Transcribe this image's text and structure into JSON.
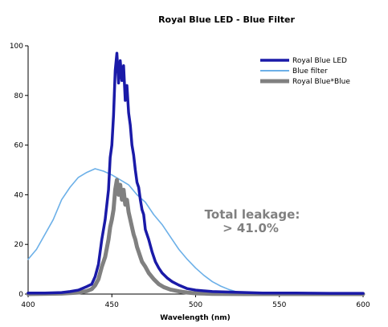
{
  "chart_data": {
    "type": "line",
    "title": "Royal Blue LED - Blue Filter",
    "xlabel": "Wavelength (nm)",
    "ylabel": "",
    "xlim": [
      400,
      600
    ],
    "ylim": [
      0,
      100
    ],
    "x_ticks": [
      "400",
      "450",
      "500",
      "550",
      "600"
    ],
    "y_ticks": [
      "0",
      "20",
      "40",
      "60",
      "80",
      "100"
    ],
    "grid": false,
    "legend_position": "top-right",
    "series": [
      {
        "name": "Royal Blue LED",
        "color": "#1a1aa8",
        "style": "thick",
        "points": [
          [
            400,
            0.4
          ],
          [
            410,
            0.4
          ],
          [
            420,
            0.6
          ],
          [
            425,
            1
          ],
          [
            430,
            1.6
          ],
          [
            435,
            3
          ],
          [
            438,
            4
          ],
          [
            440,
            7
          ],
          [
            442,
            12
          ],
          [
            444,
            22
          ],
          [
            446,
            30
          ],
          [
            448,
            42
          ],
          [
            449,
            55
          ],
          [
            450,
            60
          ],
          [
            451,
            72
          ],
          [
            452,
            90
          ],
          [
            453,
            97
          ],
          [
            454,
            85
          ],
          [
            455,
            94
          ],
          [
            456,
            86
          ],
          [
            457,
            92
          ],
          [
            458,
            78
          ],
          [
            459,
            84
          ],
          [
            460,
            73
          ],
          [
            461,
            68
          ],
          [
            462,
            60
          ],
          [
            463,
            56
          ],
          [
            464,
            50
          ],
          [
            465,
            45
          ],
          [
            466,
            43
          ],
          [
            467,
            38
          ],
          [
            468,
            34
          ],
          [
            469,
            32
          ],
          [
            470,
            26
          ],
          [
            472,
            22
          ],
          [
            474,
            17
          ],
          [
            476,
            13
          ],
          [
            478,
            10.5
          ],
          [
            480,
            8.5
          ],
          [
            483,
            6.5
          ],
          [
            486,
            5
          ],
          [
            490,
            3.6
          ],
          [
            495,
            2.2
          ],
          [
            500,
            1.6
          ],
          [
            510,
            1
          ],
          [
            520,
            0.8
          ],
          [
            540,
            0.4
          ],
          [
            560,
            0.4
          ],
          [
            580,
            0.3
          ],
          [
            600,
            0.3
          ]
        ]
      },
      {
        "name": "Blue filter",
        "color": "#6cb0e8",
        "style": "thin",
        "points": [
          [
            400,
            14
          ],
          [
            405,
            18
          ],
          [
            410,
            24
          ],
          [
            415,
            30
          ],
          [
            420,
            38
          ],
          [
            425,
            43
          ],
          [
            430,
            47
          ],
          [
            435,
            49
          ],
          [
            440,
            50.5
          ],
          [
            445,
            49.5
          ],
          [
            450,
            48
          ],
          [
            455,
            46
          ],
          [
            460,
            44
          ],
          [
            465,
            40
          ],
          [
            470,
            37
          ],
          [
            475,
            32
          ],
          [
            480,
            28
          ],
          [
            485,
            23
          ],
          [
            490,
            18
          ],
          [
            495,
            14
          ],
          [
            500,
            10.5
          ],
          [
            505,
            7.5
          ],
          [
            510,
            5
          ],
          [
            515,
            3.2
          ],
          [
            520,
            1.8
          ],
          [
            525,
            0.8
          ],
          [
            530,
            0.3
          ],
          [
            540,
            0.1
          ],
          [
            560,
            0
          ],
          [
            580,
            0
          ],
          [
            600,
            0
          ]
        ]
      },
      {
        "name": "Royal Blue*Blue",
        "color": "#808080",
        "style": "thick",
        "points": [
          [
            400,
            0
          ],
          [
            420,
            0.2
          ],
          [
            430,
            0.6
          ],
          [
            435,
            1.2
          ],
          [
            438,
            2
          ],
          [
            440,
            3.5
          ],
          [
            442,
            6
          ],
          [
            444,
            11
          ],
          [
            446,
            15
          ],
          [
            448,
            22
          ],
          [
            449,
            27
          ],
          [
            450,
            30
          ],
          [
            451,
            34
          ],
          [
            452,
            42
          ],
          [
            453,
            46
          ],
          [
            454,
            40
          ],
          [
            455,
            44
          ],
          [
            456,
            38
          ],
          [
            457,
            42
          ],
          [
            458,
            36
          ],
          [
            459,
            38
          ],
          [
            460,
            33
          ],
          [
            461,
            30
          ],
          [
            462,
            27
          ],
          [
            463,
            24
          ],
          [
            464,
            22
          ],
          [
            465,
            19
          ],
          [
            466,
            17
          ],
          [
            467,
            15
          ],
          [
            468,
            13
          ],
          [
            470,
            11
          ],
          [
            472,
            8.5
          ],
          [
            475,
            6
          ],
          [
            478,
            4
          ],
          [
            481,
            2.8
          ],
          [
            485,
            1.8
          ],
          [
            490,
            1.1
          ],
          [
            495,
            0.6
          ],
          [
            500,
            0.3
          ],
          [
            510,
            0.1
          ],
          [
            530,
            0
          ],
          [
            600,
            0
          ]
        ]
      }
    ],
    "annotations": [
      {
        "text": "Total leakage:",
        "x": 555,
        "y": 32
      },
      {
        "text": "> 41.0%",
        "x": 555,
        "y": 26
      }
    ]
  }
}
